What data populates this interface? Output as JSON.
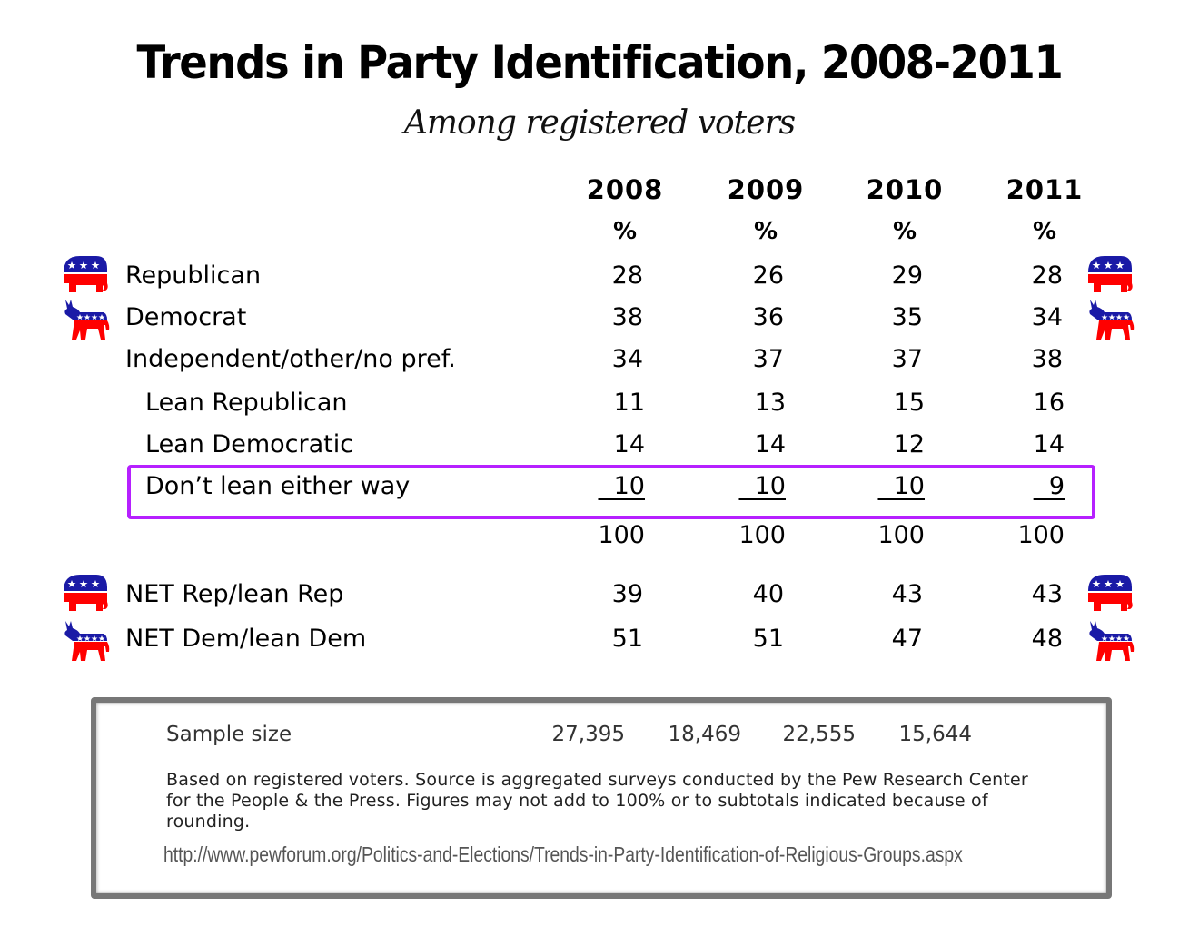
{
  "chart_data": {
    "type": "table",
    "title": "Trends in Party Identification, 2008-2011",
    "subtitle": "Among registered voters",
    "columns": [
      "2008",
      "2009",
      "2010",
      "2011"
    ],
    "unit_row": [
      "%",
      "%",
      "%",
      "%"
    ],
    "rows": [
      {
        "label": "Republican",
        "values": [
          "28",
          "26",
          "29",
          "28"
        ],
        "icon": "republican-elephant-icon",
        "indent": false
      },
      {
        "label": "Democrat",
        "values": [
          "38",
          "36",
          "35",
          "34"
        ],
        "icon": "democrat-donkey-icon",
        "indent": false
      },
      {
        "label": "Independent/other/no pref.",
        "values": [
          "34",
          "37",
          "37",
          "38"
        ],
        "indent": false
      },
      {
        "label": "Lean Republican",
        "values": [
          "11",
          "13",
          "15",
          "16"
        ],
        "indent": true
      },
      {
        "label": "Lean Democratic",
        "values": [
          "14",
          "14",
          "12",
          "14"
        ],
        "indent": true
      },
      {
        "label": "Don’t lean either way",
        "values": [
          "10",
          "10",
          "10",
          "9"
        ],
        "indent": true,
        "highlighted": true,
        "underlined": true
      },
      {
        "label": "",
        "values": [
          "100",
          "100",
          "100",
          "100"
        ],
        "total": true
      },
      {
        "label": "NET Rep/lean Rep",
        "values": [
          "39",
          "40",
          "43",
          "43"
        ],
        "icon": "republican-elephant-icon"
      },
      {
        "label": "NET Dem/lean Dem",
        "values": [
          "51",
          "51",
          "47",
          "48"
        ],
        "icon": "democrat-donkey-icon"
      }
    ],
    "sample_size": {
      "label": "Sample size",
      "values": [
        "27,395",
        "18,469",
        "22,555",
        "15,644"
      ]
    },
    "highlight_color": "#b620ff",
    "republican_colors": {
      "red": "#ff0000",
      "blue": "#1a1aa6"
    },
    "democrat_colors": {
      "red": "#ff0000",
      "blue": "#1a1aa6"
    }
  },
  "footer": {
    "note": "Based on registered voters. Source is aggregated surveys conducted by the Pew Research Center for the People & the Press. Figures may not add to 100% or to subtotals indicated because of rounding.",
    "url": "http://www.pewforum.org/Politics-and-Elections/Trends-in-Party-Identification-of-Religious-Groups.aspx"
  }
}
